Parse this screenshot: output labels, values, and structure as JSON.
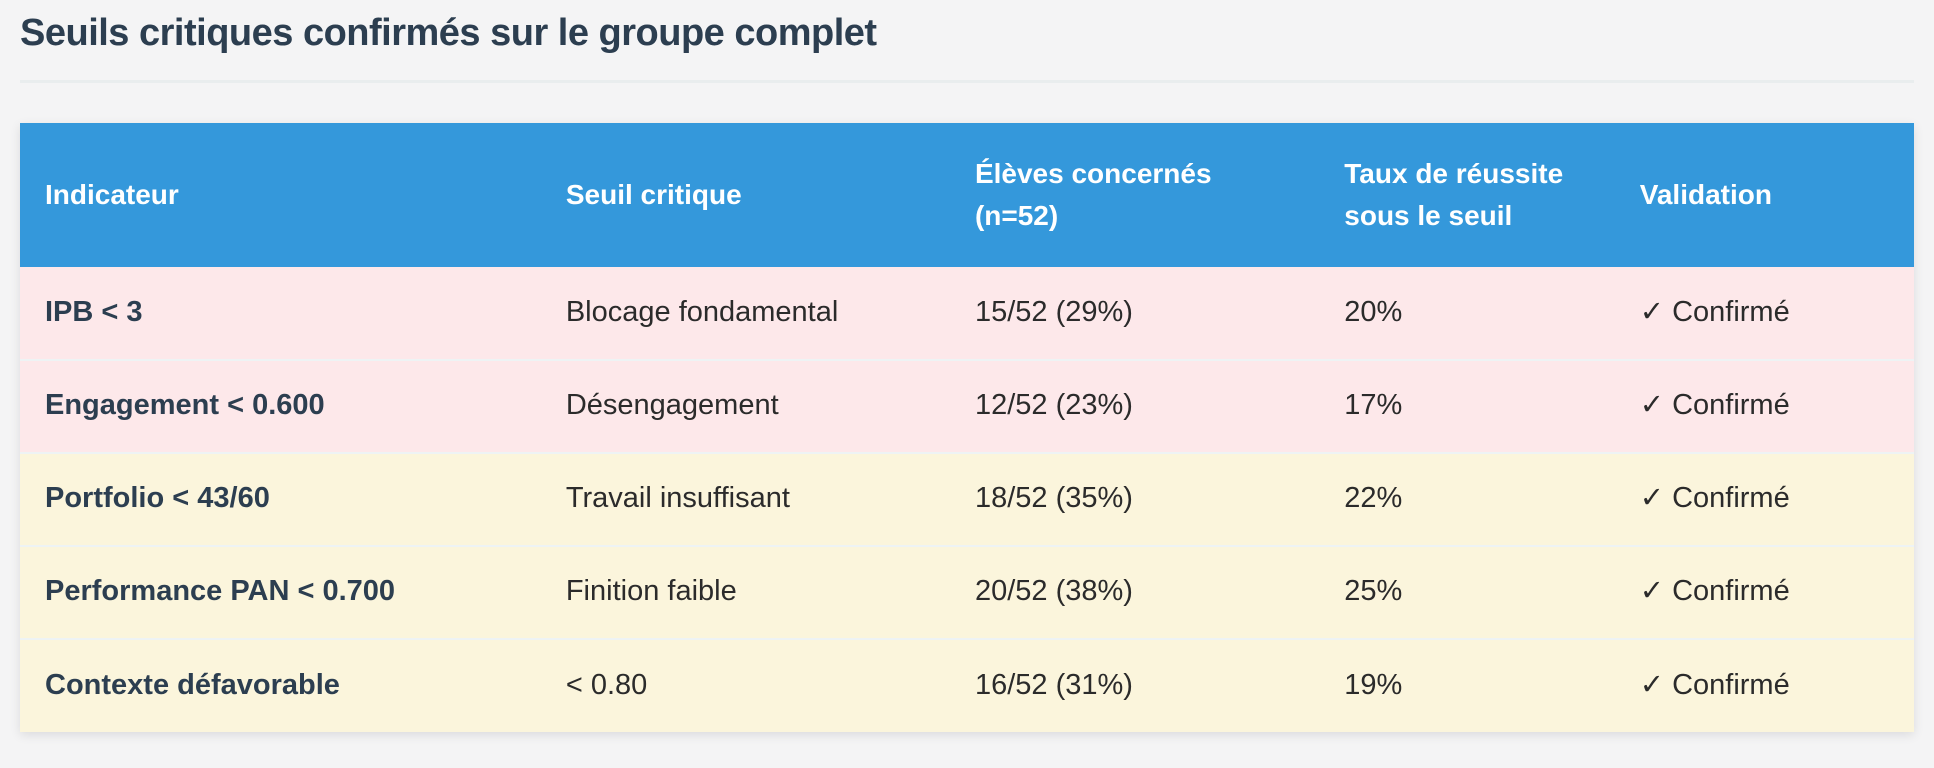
{
  "page": {
    "title": "Seuils critiques confirmés sur le groupe complet"
  },
  "colors": {
    "header_bg": "#3498db",
    "header_text": "#ffffff",
    "title_color": "#2c3e50",
    "cell_text": "#2b2b2b",
    "critical_row_bg": "#fde8ea",
    "warning_row_bg": "#fbf5dc",
    "page_bg": "#f4f4f5"
  },
  "table": {
    "columns": [
      {
        "label": "Indicateur"
      },
      {
        "label": "Seuil critique"
      },
      {
        "label": "Élèves concernés (n=52)"
      },
      {
        "label": "Taux de réussite sous le seuil"
      },
      {
        "label": "Validation"
      }
    ],
    "rows": [
      {
        "indicator": "IPB < 3",
        "threshold": "Blocage fondamental",
        "students": "15/52 (29%)",
        "success_rate": "20%",
        "validation": "✓ Confirmé",
        "severity": "critical"
      },
      {
        "indicator": "Engagement < 0.600",
        "threshold": "Désengagement",
        "students": "12/52 (23%)",
        "success_rate": "17%",
        "validation": "✓ Confirmé",
        "severity": "critical"
      },
      {
        "indicator": "Portfolio < 43/60",
        "threshold": "Travail insuffisant",
        "students": "18/52 (35%)",
        "success_rate": "22%",
        "validation": "✓ Confirmé",
        "severity": "warning"
      },
      {
        "indicator": "Performance PAN < 0.700",
        "threshold": "Finition faible",
        "students": "20/52 (38%)",
        "success_rate": "25%",
        "validation": "✓ Confirmé",
        "severity": "warning"
      },
      {
        "indicator": "Contexte défavorable",
        "threshold": "< 0.80",
        "students": "16/52 (31%)",
        "success_rate": "19%",
        "validation": "✓ Confirmé",
        "severity": "warning"
      }
    ]
  }
}
